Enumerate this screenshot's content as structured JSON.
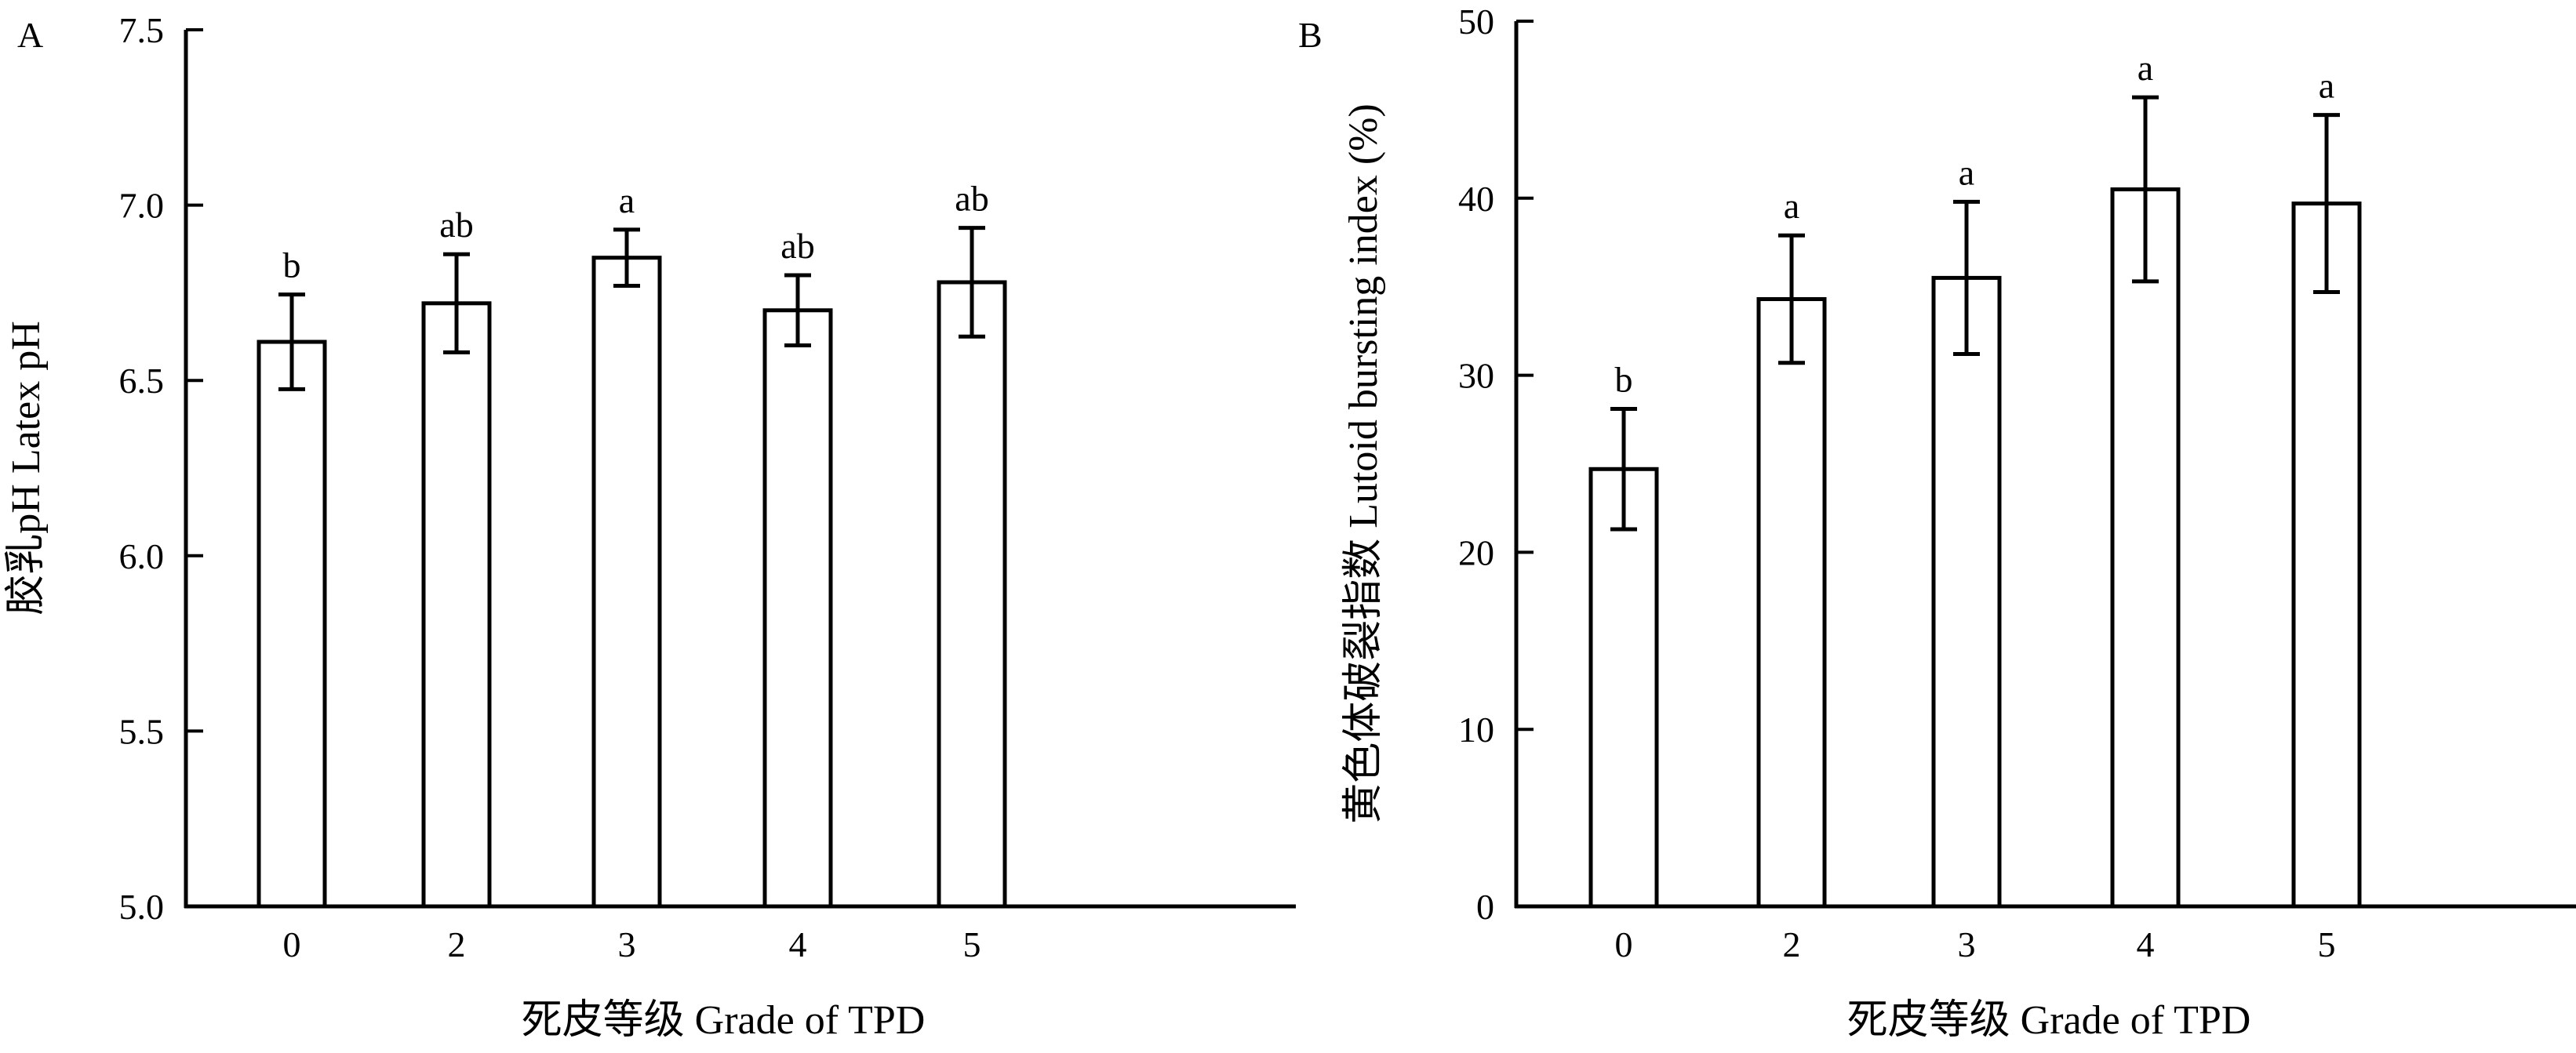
{
  "chart_data": [
    {
      "type": "bar",
      "panel_label": "A",
      "categories": [
        "0",
        "2",
        "3",
        "4",
        "5"
      ],
      "values": [
        6.61,
        6.72,
        6.85,
        6.7,
        6.78
      ],
      "errors": [
        0.135,
        0.14,
        0.08,
        0.1,
        0.155
      ],
      "significance": [
        "b",
        "ab",
        "a",
        "ab",
        "ab"
      ],
      "ylabel": "胶乳pH  Latex pH",
      "xlabel": "死皮等级  Grade of TPD",
      "ylim": [
        5.0,
        7.5
      ],
      "yticks": [
        "5.0",
        "5.5",
        "6.0",
        "6.5",
        "7.0",
        "7.5"
      ],
      "grid": false,
      "legend": "none"
    },
    {
      "type": "bar",
      "panel_label": "B",
      "categories": [
        "0",
        "2",
        "3",
        "4",
        "5"
      ],
      "values": [
        24.7,
        34.3,
        35.5,
        40.5,
        39.7
      ],
      "errors": [
        3.4,
        3.6,
        4.3,
        5.2,
        5.0
      ],
      "significance": [
        "b",
        "a",
        "a",
        "a",
        "a"
      ],
      "ylabel": "黄色体破裂指数  Lutoid bursting index (%)",
      "xlabel": "死皮等级  Grade of TPD",
      "ylim": [
        0,
        50
      ],
      "yticks": [
        "0",
        "10",
        "20",
        "30",
        "40",
        "50"
      ],
      "grid": false,
      "legend": "none"
    }
  ]
}
